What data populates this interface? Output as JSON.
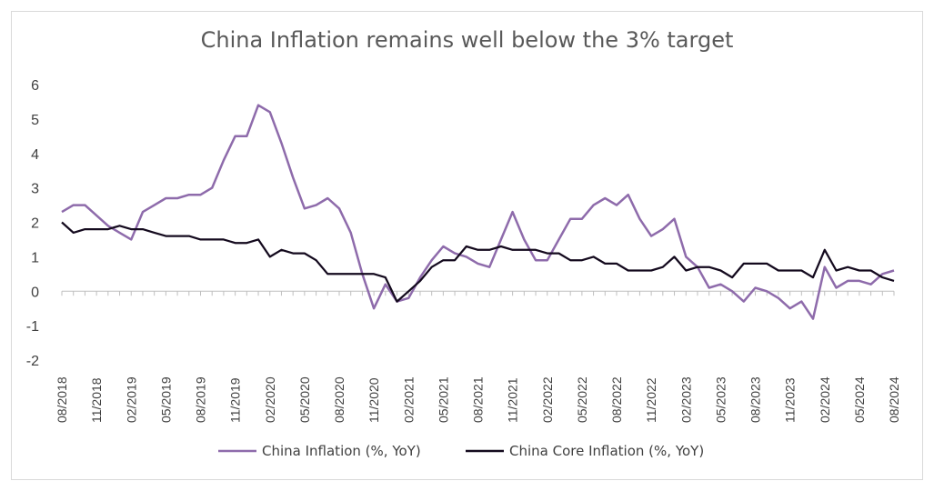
{
  "chart_data": {
    "type": "line",
    "title": "China Inflation remains well below the 3% target",
    "ylim": [
      -2,
      6
    ],
    "yticks": [
      -2,
      -1,
      0,
      1,
      2,
      3,
      4,
      5,
      6
    ],
    "x": [
      "08/2018",
      "09/2018",
      "10/2018",
      "11/2018",
      "12/2018",
      "01/2019",
      "02/2019",
      "03/2019",
      "04/2019",
      "05/2019",
      "06/2019",
      "07/2019",
      "08/2019",
      "09/2019",
      "10/2019",
      "11/2019",
      "12/2019",
      "01/2020",
      "02/2020",
      "03/2020",
      "04/2020",
      "05/2020",
      "06/2020",
      "07/2020",
      "08/2020",
      "09/2020",
      "10/2020",
      "11/2020",
      "12/2020",
      "01/2021",
      "02/2021",
      "03/2021",
      "04/2021",
      "05/2021",
      "06/2021",
      "07/2021",
      "08/2021",
      "09/2021",
      "10/2021",
      "11/2021",
      "12/2021",
      "01/2022",
      "02/2022",
      "03/2022",
      "04/2022",
      "05/2022",
      "06/2022",
      "07/2022",
      "08/2022",
      "09/2022",
      "10/2022",
      "11/2022",
      "12/2022",
      "01/2023",
      "02/2023",
      "03/2023",
      "04/2023",
      "05/2023",
      "06/2023",
      "07/2023",
      "08/2023",
      "09/2023",
      "10/2023",
      "11/2023",
      "12/2023",
      "01/2024",
      "02/2024",
      "03/2024",
      "04/2024",
      "05/2024",
      "06/2024",
      "07/2024",
      "08/2024"
    ],
    "xtick_labels": [
      "08/2018",
      "11/2018",
      "02/2019",
      "05/2019",
      "08/2019",
      "11/2019",
      "02/2020",
      "05/2020",
      "08/2020",
      "11/2020",
      "02/2021",
      "05/2021",
      "08/2021",
      "11/2021",
      "02/2022",
      "05/2022",
      "08/2022",
      "11/2022",
      "02/2023",
      "05/2023",
      "08/2023",
      "11/2023",
      "02/2024",
      "05/2024",
      "08/2024"
    ],
    "series": [
      {
        "name": "China Inflation (%, YoY)",
        "color": "#8e6bab",
        "values": [
          2.3,
          2.5,
          2.5,
          2.2,
          1.9,
          1.7,
          1.5,
          2.3,
          2.5,
          2.7,
          2.7,
          2.8,
          2.8,
          3.0,
          3.8,
          4.5,
          4.5,
          5.4,
          5.2,
          4.3,
          3.3,
          2.4,
          2.5,
          2.7,
          2.4,
          1.7,
          0.5,
          -0.5,
          0.2,
          -0.3,
          -0.2,
          0.4,
          0.9,
          1.3,
          1.1,
          1.0,
          0.8,
          0.7,
          1.5,
          2.3,
          1.5,
          0.9,
          0.9,
          1.5,
          2.1,
          2.1,
          2.5,
          2.7,
          2.5,
          2.8,
          2.1,
          1.6,
          1.8,
          2.1,
          1.0,
          0.7,
          0.1,
          0.2,
          0.0,
          -0.3,
          0.1,
          0.0,
          -0.2,
          -0.5,
          -0.3,
          -0.8,
          0.7,
          0.1,
          0.3,
          0.3,
          0.2,
          0.5,
          0.6
        ]
      },
      {
        "name": "China Core Inflation (%, YoY)",
        "color": "#140a1e",
        "values": [
          2.0,
          1.7,
          1.8,
          1.8,
          1.8,
          1.9,
          1.8,
          1.8,
          1.7,
          1.6,
          1.6,
          1.6,
          1.5,
          1.5,
          1.5,
          1.4,
          1.4,
          1.5,
          1.0,
          1.2,
          1.1,
          1.1,
          0.9,
          0.5,
          0.5,
          0.5,
          0.5,
          0.5,
          0.4,
          -0.3,
          0.0,
          0.3,
          0.7,
          0.9,
          0.9,
          1.3,
          1.2,
          1.2,
          1.3,
          1.2,
          1.2,
          1.2,
          1.1,
          1.1,
          0.9,
          0.9,
          1.0,
          0.8,
          0.8,
          0.6,
          0.6,
          0.6,
          0.7,
          1.0,
          0.6,
          0.7,
          0.7,
          0.6,
          0.4,
          0.8,
          0.8,
          0.8,
          0.6,
          0.6,
          0.6,
          0.4,
          1.2,
          0.6,
          0.7,
          0.6,
          0.6,
          0.4,
          0.3
        ]
      }
    ],
    "legend_position": "bottom",
    "grid": false
  }
}
